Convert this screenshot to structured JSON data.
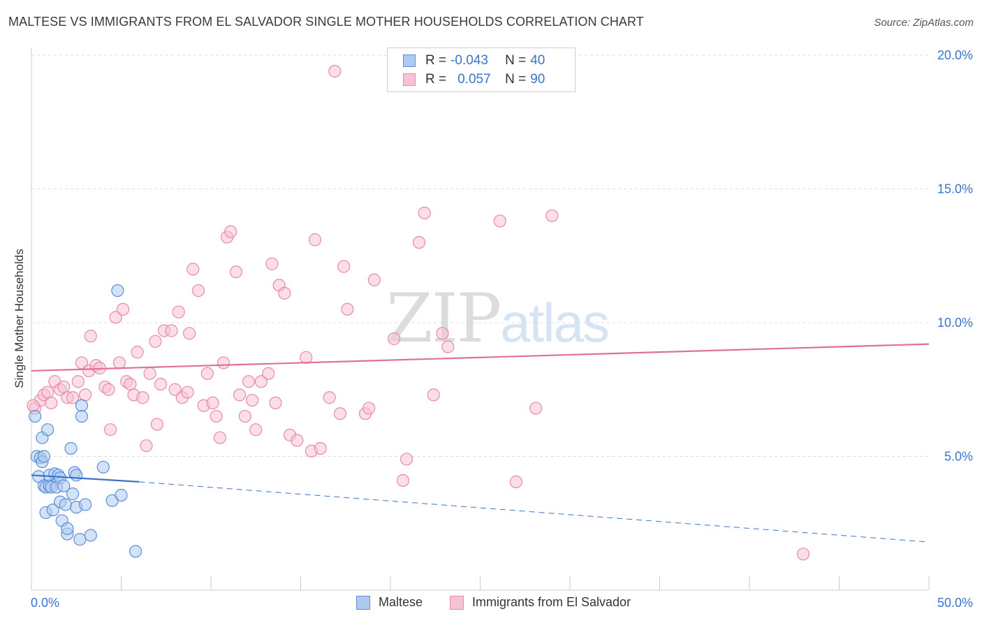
{
  "title": "MALTESE VS IMMIGRANTS FROM EL SALVADOR SINGLE MOTHER HOUSEHOLDS CORRELATION CHART",
  "source": "Source: ZipAtlas.com",
  "watermark": {
    "zip": "ZIP",
    "atlas": "atlas"
  },
  "legend": {
    "rows": [
      {
        "r_label": "R =",
        "r_value": "-0.043",
        "n_label": "N =",
        "n_value": "40"
      },
      {
        "r_label": "R =",
        "r_value": "0.057",
        "n_label": "N =",
        "n_value": "90"
      }
    ]
  },
  "bottom_legend": {
    "series1": "Maltese",
    "series2": "Immigrants from El Salvador"
  },
  "colors": {
    "maltese_fill": "#aecbef",
    "maltese_stroke": "#5b8fd6",
    "maltese_line": "#3a73c9",
    "salvador_fill": "#f7c3d4",
    "salvador_stroke": "#e58aa8",
    "salvador_line": "#e0709a",
    "tick_label": "#3a73c9",
    "grid": "#dddddd"
  },
  "chart_data": {
    "type": "scatter",
    "title": "MALTESE VS IMMIGRANTS FROM EL SALVADOR SINGLE MOTHER HOUSEHOLDS CORRELATION CHART",
    "xlabel": "",
    "ylabel": "Single Mother Households",
    "xlim": [
      0,
      50
    ],
    "ylim": [
      0,
      20
    ],
    "x_tick_labels": [
      "0.0%",
      "50.0%"
    ],
    "y_ticks": [
      5,
      10,
      15,
      20
    ],
    "y_tick_labels": [
      "5.0%",
      "10.0%",
      "15.0%",
      "20.0%"
    ],
    "grid": true,
    "legend_position": "top-center",
    "series": [
      {
        "name": "Maltese",
        "r": -0.043,
        "n": 40,
        "trend": {
          "x": [
            0,
            6
          ],
          "y": [
            4.3,
            4.05
          ],
          "dashed_to": [
            50,
            1.8
          ]
        },
        "points": [
          [
            0.3,
            5.0
          ],
          [
            0.4,
            4.25
          ],
          [
            0.5,
            4.95
          ],
          [
            0.6,
            4.8
          ],
          [
            0.6,
            5.7
          ],
          [
            0.7,
            5.0
          ],
          [
            0.7,
            3.9
          ],
          [
            0.8,
            2.9
          ],
          [
            0.8,
            3.85
          ],
          [
            0.9,
            6.0
          ],
          [
            1.0,
            4.3
          ],
          [
            1.0,
            3.9
          ],
          [
            1.1,
            3.85
          ],
          [
            1.2,
            3.0
          ],
          [
            1.3,
            4.35
          ],
          [
            1.4,
            3.85
          ],
          [
            1.5,
            4.3
          ],
          [
            1.6,
            3.3
          ],
          [
            1.6,
            4.2
          ],
          [
            1.7,
            2.6
          ],
          [
            1.8,
            3.9
          ],
          [
            1.9,
            3.2
          ],
          [
            2.0,
            2.1
          ],
          [
            2.0,
            2.3
          ],
          [
            2.2,
            5.3
          ],
          [
            2.3,
            3.6
          ],
          [
            2.4,
            4.4
          ],
          [
            2.5,
            4.3
          ],
          [
            2.5,
            3.1
          ],
          [
            2.7,
            1.9
          ],
          [
            2.8,
            6.9
          ],
          [
            2.8,
            6.5
          ],
          [
            3.0,
            3.2
          ],
          [
            3.3,
            2.05
          ],
          [
            4.0,
            4.6
          ],
          [
            4.5,
            3.35
          ],
          [
            4.8,
            11.2
          ],
          [
            5.0,
            3.55
          ],
          [
            5.8,
            1.45
          ],
          [
            0.2,
            6.5
          ]
        ]
      },
      {
        "name": "Immigrants from El Salvador",
        "r": 0.057,
        "n": 90,
        "trend": {
          "x": [
            0,
            50
          ],
          "y": [
            8.2,
            9.2
          ]
        },
        "points": [
          [
            0.2,
            6.8
          ],
          [
            0.5,
            7.1
          ],
          [
            0.7,
            7.3
          ],
          [
            0.9,
            7.4
          ],
          [
            1.1,
            7.0
          ],
          [
            1.3,
            7.8
          ],
          [
            1.6,
            7.5
          ],
          [
            1.8,
            7.6
          ],
          [
            2.0,
            7.2
          ],
          [
            2.3,
            7.2
          ],
          [
            2.6,
            7.8
          ],
          [
            2.8,
            8.5
          ],
          [
            3.0,
            7.3
          ],
          [
            3.2,
            8.2
          ],
          [
            3.3,
            9.5
          ],
          [
            3.6,
            8.4
          ],
          [
            3.8,
            8.3
          ],
          [
            4.1,
            7.6
          ],
          [
            4.3,
            7.5
          ],
          [
            4.4,
            6.0
          ],
          [
            4.7,
            10.2
          ],
          [
            4.9,
            8.5
          ],
          [
            5.1,
            10.5
          ],
          [
            5.3,
            7.8
          ],
          [
            5.5,
            7.7
          ],
          [
            5.7,
            7.3
          ],
          [
            5.9,
            8.9
          ],
          [
            6.2,
            7.2
          ],
          [
            6.4,
            5.4
          ],
          [
            6.6,
            8.1
          ],
          [
            6.9,
            9.3
          ],
          [
            7.0,
            6.2
          ],
          [
            7.2,
            7.7
          ],
          [
            7.4,
            9.7
          ],
          [
            7.8,
            9.7
          ],
          [
            8.0,
            7.5
          ],
          [
            8.2,
            10.4
          ],
          [
            8.4,
            7.2
          ],
          [
            8.7,
            7.4
          ],
          [
            8.8,
            9.6
          ],
          [
            9.0,
            12.0
          ],
          [
            9.3,
            11.2
          ],
          [
            9.6,
            6.9
          ],
          [
            9.8,
            8.1
          ],
          [
            10.1,
            7.0
          ],
          [
            10.3,
            6.5
          ],
          [
            10.5,
            5.7
          ],
          [
            10.7,
            8.5
          ],
          [
            10.9,
            13.2
          ],
          [
            11.1,
            13.4
          ],
          [
            11.4,
            11.9
          ],
          [
            11.6,
            7.3
          ],
          [
            11.9,
            6.5
          ],
          [
            12.1,
            7.8
          ],
          [
            12.3,
            7.1
          ],
          [
            12.5,
            6.0
          ],
          [
            12.8,
            7.8
          ],
          [
            13.2,
            8.1
          ],
          [
            13.4,
            12.2
          ],
          [
            13.6,
            7.0
          ],
          [
            13.8,
            11.4
          ],
          [
            14.1,
            11.1
          ],
          [
            14.4,
            5.8
          ],
          [
            14.8,
            5.6
          ],
          [
            15.3,
            8.7
          ],
          [
            15.6,
            5.2
          ],
          [
            15.8,
            13.1
          ],
          [
            16.1,
            5.3
          ],
          [
            16.6,
            7.2
          ],
          [
            16.9,
            19.4
          ],
          [
            17.2,
            6.6
          ],
          [
            17.4,
            12.1
          ],
          [
            17.6,
            10.5
          ],
          [
            18.6,
            6.6
          ],
          [
            18.8,
            6.8
          ],
          [
            19.1,
            11.6
          ],
          [
            20.2,
            9.4
          ],
          [
            20.7,
            4.1
          ],
          [
            20.9,
            4.9
          ],
          [
            21.6,
            13.0
          ],
          [
            21.9,
            14.1
          ],
          [
            22.4,
            7.3
          ],
          [
            22.9,
            9.6
          ],
          [
            23.2,
            9.1
          ],
          [
            26.1,
            13.8
          ],
          [
            27.0,
            4.05
          ],
          [
            28.1,
            6.8
          ],
          [
            29.0,
            14.0
          ],
          [
            43.0,
            1.35
          ],
          [
            0.1,
            6.9
          ]
        ]
      }
    ]
  }
}
